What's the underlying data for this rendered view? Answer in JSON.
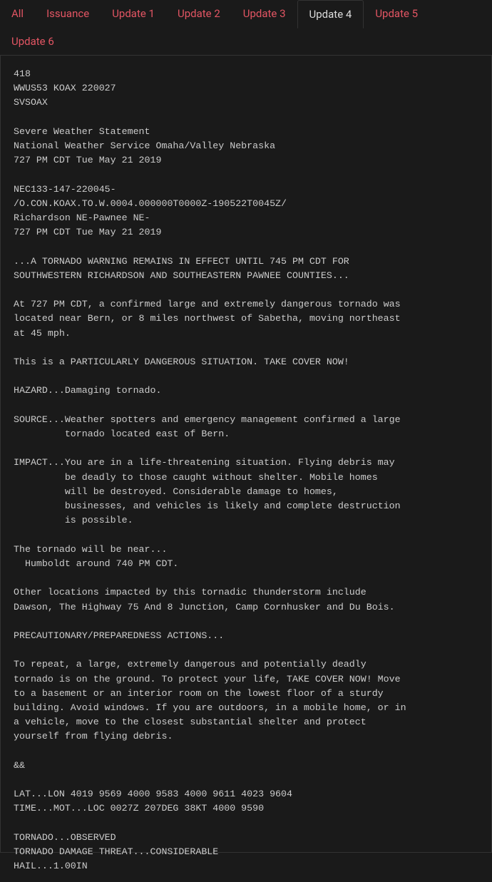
{
  "colors": {
    "background": "#1a1a1a",
    "tab_inactive": "#e25563",
    "tab_active": "#dddddd",
    "border": "#333333",
    "body_text": "#cccccc"
  },
  "tabs": [
    {
      "label": "All",
      "active": false
    },
    {
      "label": "Issuance",
      "active": false
    },
    {
      "label": "Update 1",
      "active": false
    },
    {
      "label": "Update 2",
      "active": false
    },
    {
      "label": "Update 3",
      "active": false
    },
    {
      "label": "Update 4",
      "active": true
    },
    {
      "label": "Update 5",
      "active": false
    },
    {
      "label": "Update 6",
      "active": false
    }
  ],
  "bulletin": "418\nWWUS53 KOAX 220027\nSVSOAX\n\nSevere Weather Statement\nNational Weather Service Omaha/Valley Nebraska\n727 PM CDT Tue May 21 2019\n\nNEC133-147-220045-\n/O.CON.KOAX.TO.W.0004.000000T0000Z-190522T0045Z/\nRichardson NE-Pawnee NE-\n727 PM CDT Tue May 21 2019\n\n...A TORNADO WARNING REMAINS IN EFFECT UNTIL 745 PM CDT FOR\nSOUTHWESTERN RICHARDSON AND SOUTHEASTERN PAWNEE COUNTIES...\n\nAt 727 PM CDT, a confirmed large and extremely dangerous tornado was\nlocated near Bern, or 8 miles northwest of Sabetha, moving northeast\nat 45 mph.\n\nThis is a PARTICULARLY DANGEROUS SITUATION. TAKE COVER NOW!\n\nHAZARD...Damaging tornado.\n\nSOURCE...Weather spotters and emergency management confirmed a large\n         tornado located east of Bern.\n\nIMPACT...You are in a life-threatening situation. Flying debris may\n         be deadly to those caught without shelter. Mobile homes\n         will be destroyed. Considerable damage to homes,\n         businesses, and vehicles is likely and complete destruction\n         is possible.\n\nThe tornado will be near...\n  Humboldt around 740 PM CDT.\n\nOther locations impacted by this tornadic thunderstorm include\nDawson, The Highway 75 And 8 Junction, Camp Cornhusker and Du Bois.\n\nPRECAUTIONARY/PREPAREDNESS ACTIONS...\n\nTo repeat, a large, extremely dangerous and potentially deadly\ntornado is on the ground. To protect your life, TAKE COVER NOW! Move\nto a basement or an interior room on the lowest floor of a sturdy\nbuilding. Avoid windows. If you are outdoors, in a mobile home, or in\na vehicle, move to the closest substantial shelter and protect\nyourself from flying debris.\n\n&&\n\nLAT...LON 4019 9569 4000 9583 4000 9611 4023 9604\nTIME...MOT...LOC 0027Z 207DEG 38KT 4000 9590\n\nTORNADO...OBSERVED\nTORNADO DAMAGE THREAT...CONSIDERABLE\nHAIL...1.00IN"
}
